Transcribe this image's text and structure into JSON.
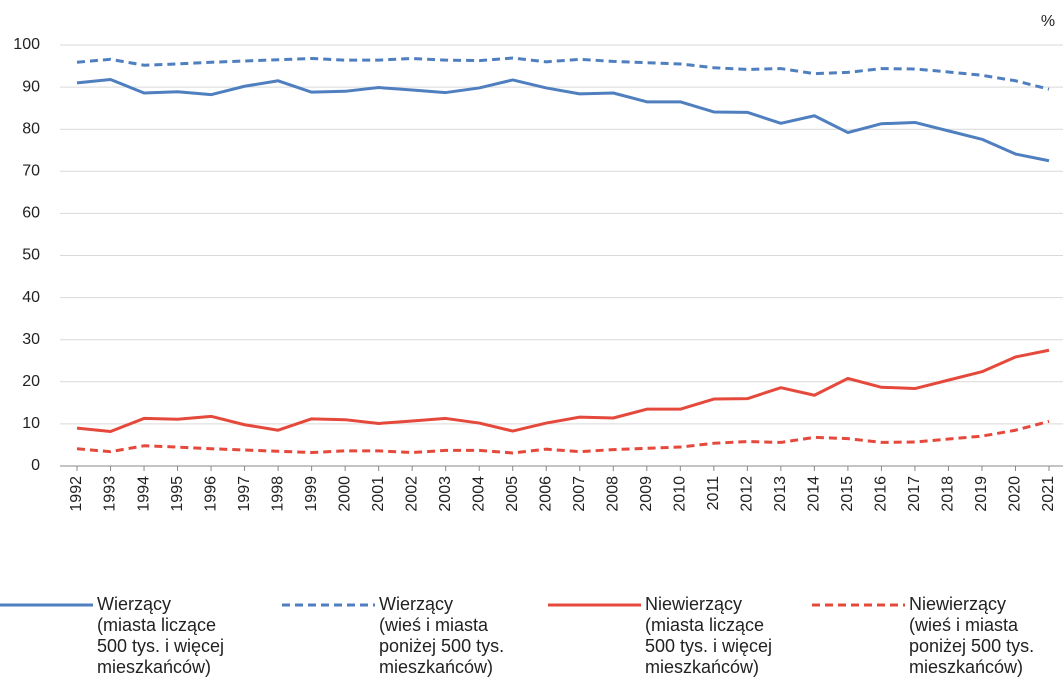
{
  "chart_data": {
    "type": "line",
    "unit_label": "%",
    "categories": [
      "1992",
      "1993",
      "1994",
      "1995",
      "1996",
      "1997",
      "1998",
      "1999",
      "2000",
      "2001",
      "2002",
      "2003",
      "2004",
      "2005",
      "2006",
      "2007",
      "2008",
      "2009",
      "2010",
      "2011",
      "2012",
      "2013",
      "2014",
      "2015",
      "2016",
      "2017",
      "2018",
      "2019",
      "2020",
      "2021"
    ],
    "series": [
      {
        "name": "Wierzący\n(miasta liczące\n500 tys. i więcej\nmieszkańców)",
        "color": "#4f7fbf",
        "dashed": false,
        "values": [
          91,
          91.8,
          88.6,
          88.9,
          88.2,
          90.2,
          91.5,
          88.8,
          89,
          89.9,
          89.3,
          88.7,
          89.8,
          91.7,
          89.8,
          88.4,
          88.6,
          86.5,
          86.5,
          84.1,
          84,
          81.4,
          83.2,
          79.2,
          81.3,
          81.6,
          79.6,
          77.6,
          74.1,
          72.5
        ]
      },
      {
        "name": "Wierzący\n(wieś i miasta\nponiżej 500 tys.\nmieszkańców)",
        "color": "#4f7fbf",
        "dashed": true,
        "values": [
          95.9,
          96.6,
          95.2,
          95.5,
          95.9,
          96.2,
          96.5,
          96.8,
          96.4,
          96.4,
          96.8,
          96.4,
          96.3,
          96.9,
          96.0,
          96.6,
          96.1,
          95.8,
          95.5,
          94.6,
          94.2,
          94.4,
          93.2,
          93.5,
          94.4,
          94.3,
          93.6,
          92.8,
          91.5,
          89.5
        ]
      },
      {
        "name": "Niewierzący\n(miasta liczące\n500 tys. i więcej\nmieszkańców)",
        "color": "#e5493c",
        "dashed": false,
        "values": [
          9,
          8.2,
          11.3,
          11.1,
          11.8,
          9.8,
          8.5,
          11.2,
          11,
          10.1,
          10.7,
          11.3,
          10.2,
          8.3,
          10.2,
          11.6,
          11.4,
          13.5,
          13.5,
          15.9,
          16,
          18.6,
          16.8,
          20.8,
          18.7,
          18.4,
          20.4,
          22.4,
          25.9,
          27.5
        ]
      },
      {
        "name": "Niewierzący\n(wieś i miasta\nponiżej 500 tys.\nmieszkańców)",
        "color": "#e5493c",
        "dashed": true,
        "values": [
          4.1,
          3.4,
          4.8,
          4.5,
          4.1,
          3.8,
          3.5,
          3.2,
          3.6,
          3.6,
          3.2,
          3.7,
          3.7,
          3.1,
          4.0,
          3.4,
          3.9,
          4.2,
          4.5,
          5.4,
          5.8,
          5.6,
          6.8,
          6.5,
          5.6,
          5.7,
          6.4,
          7.1,
          8.5,
          10.6
        ]
      }
    ],
    "ylim": [
      0,
      100
    ],
    "yticks": [
      0,
      10,
      20,
      30,
      40,
      50,
      60,
      70,
      80,
      90,
      100
    ],
    "grid": true
  }
}
